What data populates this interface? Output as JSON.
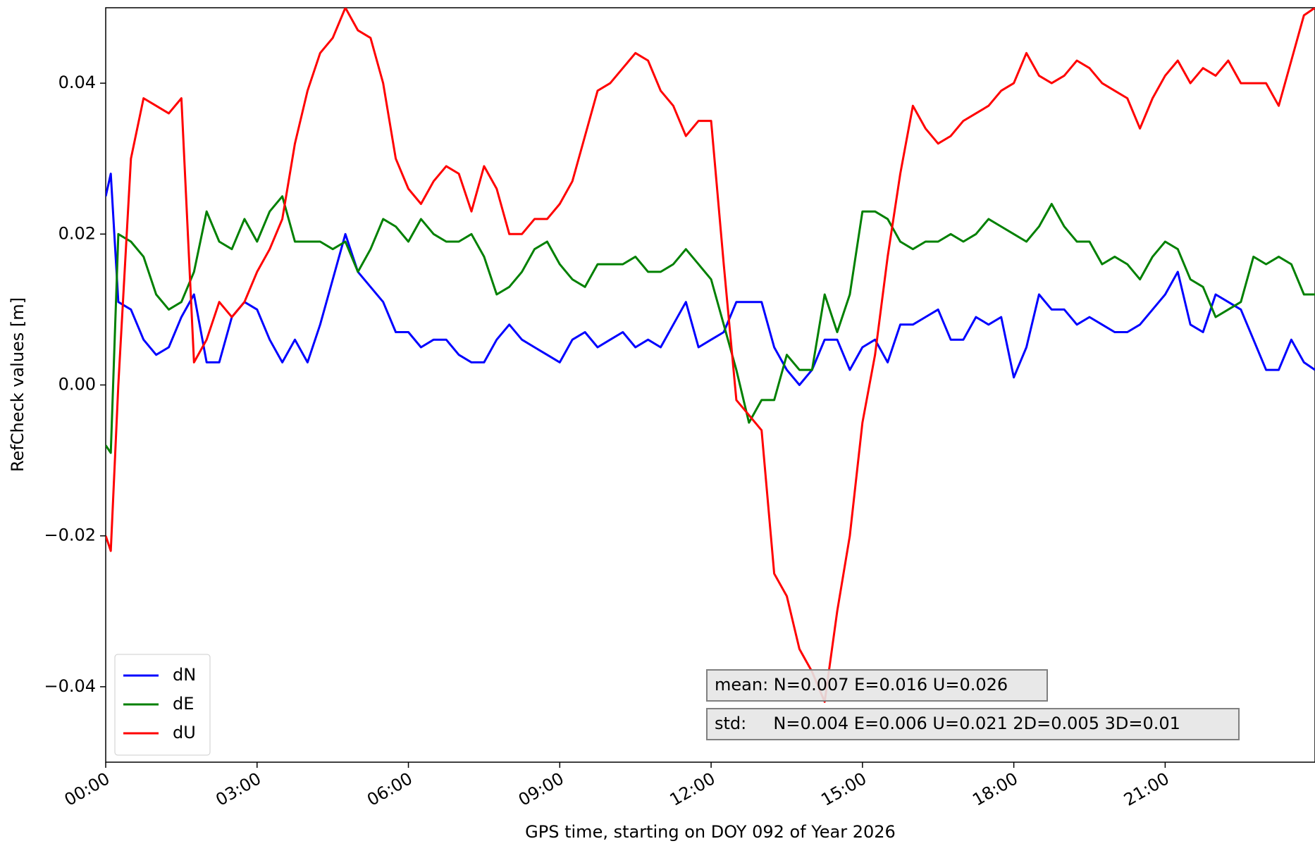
{
  "chart_data": {
    "type": "line",
    "xlabel": "GPS time, starting on DOY 092 of Year 2026",
    "ylabel": "RefCheck values [m]",
    "x": [
      0,
      0.1,
      0.25,
      0.5,
      0.75,
      1,
      1.25,
      1.5,
      1.75,
      2,
      2.25,
      2.5,
      2.75,
      3,
      3.25,
      3.5,
      3.75,
      4,
      4.25,
      4.5,
      4.75,
      5,
      5.25,
      5.5,
      5.75,
      6,
      6.25,
      6.5,
      6.75,
      7,
      7.25,
      7.5,
      7.75,
      8,
      8.25,
      8.5,
      8.75,
      9,
      9.25,
      9.5,
      9.75,
      10,
      10.25,
      10.5,
      10.75,
      11,
      11.25,
      11.5,
      11.75,
      12,
      12.25,
      12.5,
      12.75,
      13,
      13.25,
      13.5,
      13.75,
      14,
      14.25,
      14.5,
      14.75,
      15,
      15.25,
      15.5,
      15.75,
      16,
      16.25,
      16.5,
      16.75,
      17,
      17.25,
      17.5,
      17.75,
      18,
      18.25,
      18.5,
      18.75,
      19,
      19.25,
      19.5,
      19.75,
      20,
      20.25,
      20.5,
      20.75,
      21,
      21.25,
      21.5,
      21.75,
      22,
      22.25,
      22.5,
      22.75,
      23,
      23.25,
      23.5,
      23.75,
      23.97
    ],
    "series": [
      {
        "name": "dN",
        "color": "#0000ff",
        "values": [
          0.025,
          0.028,
          0.011,
          0.01,
          0.006,
          0.004,
          0.005,
          0.009,
          0.012,
          0.003,
          0.003,
          0.009,
          0.011,
          0.01,
          0.006,
          0.003,
          0.006,
          0.003,
          0.008,
          0.014,
          0.02,
          0.015,
          0.013,
          0.011,
          0.007,
          0.007,
          0.005,
          0.006,
          0.006,
          0.004,
          0.003,
          0.003,
          0.006,
          0.008,
          0.006,
          0.005,
          0.004,
          0.003,
          0.006,
          0.007,
          0.005,
          0.006,
          0.007,
          0.005,
          0.006,
          0.005,
          0.008,
          0.011,
          0.005,
          0.006,
          0.007,
          0.011,
          0.011,
          0.011,
          0.005,
          0.002,
          0.0,
          0.002,
          0.006,
          0.006,
          0.002,
          0.005,
          0.006,
          0.003,
          0.008,
          0.008,
          0.009,
          0.01,
          0.006,
          0.006,
          0.009,
          0.008,
          0.009,
          0.001,
          0.005,
          0.012,
          0.01,
          0.01,
          0.008,
          0.009,
          0.008,
          0.007,
          0.007,
          0.008,
          0.01,
          0.012,
          0.015,
          0.008,
          0.007,
          0.012,
          0.011,
          0.01,
          0.006,
          0.002,
          0.002,
          0.006,
          0.003,
          0.002
        ]
      },
      {
        "name": "dE",
        "color": "#008000",
        "values": [
          -0.008,
          -0.009,
          0.02,
          0.019,
          0.017,
          0.012,
          0.01,
          0.011,
          0.015,
          0.023,
          0.019,
          0.018,
          0.022,
          0.019,
          0.023,
          0.025,
          0.019,
          0.019,
          0.019,
          0.018,
          0.019,
          0.015,
          0.018,
          0.022,
          0.021,
          0.019,
          0.022,
          0.02,
          0.019,
          0.019,
          0.02,
          0.017,
          0.012,
          0.013,
          0.015,
          0.018,
          0.019,
          0.016,
          0.014,
          0.013,
          0.016,
          0.016,
          0.016,
          0.017,
          0.015,
          0.015,
          0.016,
          0.018,
          0.016,
          0.014,
          0.008,
          0.002,
          -0.005,
          -0.002,
          -0.002,
          0.004,
          0.002,
          0.002,
          0.012,
          0.007,
          0.012,
          0.023,
          0.023,
          0.022,
          0.019,
          0.018,
          0.019,
          0.019,
          0.02,
          0.019,
          0.02,
          0.022,
          0.021,
          0.02,
          0.019,
          0.021,
          0.024,
          0.021,
          0.019,
          0.019,
          0.016,
          0.017,
          0.016,
          0.014,
          0.017,
          0.019,
          0.018,
          0.014,
          0.013,
          0.009,
          0.01,
          0.011,
          0.017,
          0.016,
          0.017,
          0.016,
          0.012,
          0.012
        ]
      },
      {
        "name": "dU",
        "color": "#ff0000",
        "values": [
          -0.02,
          -0.022,
          0.0,
          0.03,
          0.038,
          0.037,
          0.036,
          0.038,
          0.003,
          0.006,
          0.011,
          0.009,
          0.011,
          0.015,
          0.018,
          0.022,
          0.032,
          0.039,
          0.044,
          0.046,
          0.05,
          0.047,
          0.046,
          0.04,
          0.03,
          0.026,
          0.024,
          0.027,
          0.029,
          0.028,
          0.023,
          0.029,
          0.026,
          0.02,
          0.02,
          0.022,
          0.022,
          0.024,
          0.027,
          0.033,
          0.039,
          0.04,
          0.042,
          0.044,
          0.043,
          0.039,
          0.037,
          0.033,
          0.035,
          0.035,
          0.016,
          -0.002,
          -0.004,
          -0.006,
          -0.025,
          -0.028,
          -0.035,
          -0.038,
          -0.042,
          -0.03,
          -0.02,
          -0.005,
          0.004,
          0.017,
          0.028,
          0.037,
          0.034,
          0.032,
          0.033,
          0.035,
          0.036,
          0.037,
          0.039,
          0.04,
          0.044,
          0.041,
          0.04,
          0.041,
          0.043,
          0.042,
          0.04,
          0.039,
          0.038,
          0.034,
          0.038,
          0.041,
          0.043,
          0.04,
          0.042,
          0.041,
          0.043,
          0.04,
          0.04,
          0.04,
          0.037,
          0.043,
          0.049,
          0.05
        ]
      }
    ],
    "xlim": [
      0,
      23.97
    ],
    "xticks": [
      {
        "value": 0,
        "label": "00:00"
      },
      {
        "value": 3,
        "label": "03:00"
      },
      {
        "value": 6,
        "label": "06:00"
      },
      {
        "value": 9,
        "label": "09:00"
      },
      {
        "value": 12,
        "label": "12:00"
      },
      {
        "value": 15,
        "label": "15:00"
      },
      {
        "value": 18,
        "label": "18:00"
      },
      {
        "value": 21,
        "label": "21:00"
      }
    ],
    "ylim": [
      -0.05,
      0.05
    ],
    "yticks": [
      {
        "value": -0.04,
        "label": "−0.04"
      },
      {
        "value": -0.02,
        "label": "−0.02"
      },
      {
        "value": 0,
        "label": "0.00"
      },
      0.02,
      0.04
    ],
    "legend": "lower left",
    "annotations": [
      "mean: N=0.007 E=0.016 U=0.026",
      "std:     N=0.004 E=0.006 U=0.021 2D=0.005 3D=0.01"
    ]
  }
}
